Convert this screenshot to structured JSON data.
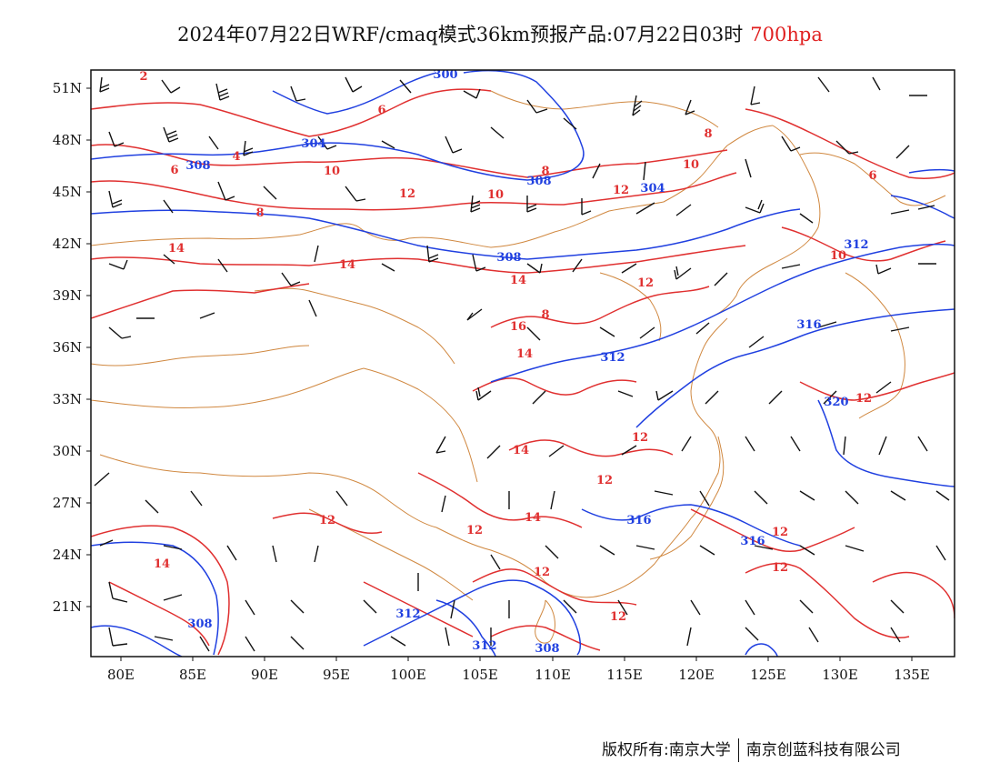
{
  "title": {
    "main": "2024年07月22日WRF/cmaq模式36km预报产品:07月22日03时",
    "level": "700hpa",
    "level_color": "#e02020"
  },
  "copyright": {
    "owner": "版权所有:南京大学",
    "partner": "南京创蓝科技有限公司"
  },
  "axes": {
    "lat_labels": [
      "51N",
      "48N",
      "45N",
      "42N",
      "39N",
      "36N",
      "33N",
      "30N",
      "27N",
      "24N",
      "21N"
    ],
    "lon_labels": [
      "80E",
      "85E",
      "90E",
      "95E",
      "100E",
      "105E",
      "110E",
      "115E",
      "120E",
      "125E",
      "130E",
      "135E"
    ]
  },
  "colors": {
    "temperature_contour": "#e03030",
    "height_contour": "#2040e0",
    "border": "#d08840",
    "wind_barb": "#111111"
  },
  "height_labels": [
    "300",
    "304",
    "308",
    "304",
    "308",
    "308",
    "312",
    "312",
    "316",
    "316",
    "320",
    "316",
    "308",
    "312",
    "312",
    "308"
  ],
  "temperature_labels": [
    "2",
    "6",
    "4",
    "6",
    "8",
    "10",
    "8",
    "12",
    "10",
    "10",
    "12",
    "8",
    "14",
    "14",
    "14",
    "16",
    "14",
    "14",
    "12",
    "12",
    "12",
    "14",
    "14",
    "12",
    "12",
    "12",
    "12",
    "12",
    "12",
    "10",
    "6",
    "12",
    "8"
  ]
}
